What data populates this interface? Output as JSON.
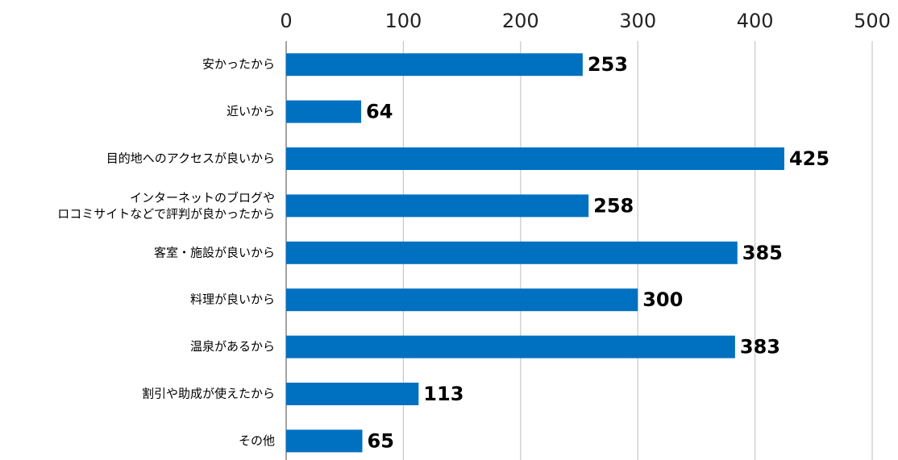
{
  "chart_data": {
    "type": "bar",
    "orientation": "horizontal",
    "categories": [
      "安かったから",
      "近いから",
      "目的地へのアクセスが良いから",
      "インターネットのブログや\nロコミサイトなどで評判が良かったから",
      "客室・施設が良いから",
      "料理が良いから",
      "温泉があるから",
      "割引や助成が使えたから",
      "その他"
    ],
    "values": [
      253,
      64,
      425,
      258,
      385,
      300,
      383,
      113,
      65
    ],
    "color": "#0070c0",
    "xlim": [
      0,
      500
    ],
    "xticks": [
      0,
      100,
      200,
      300,
      400,
      500
    ],
    "grid": true
  }
}
